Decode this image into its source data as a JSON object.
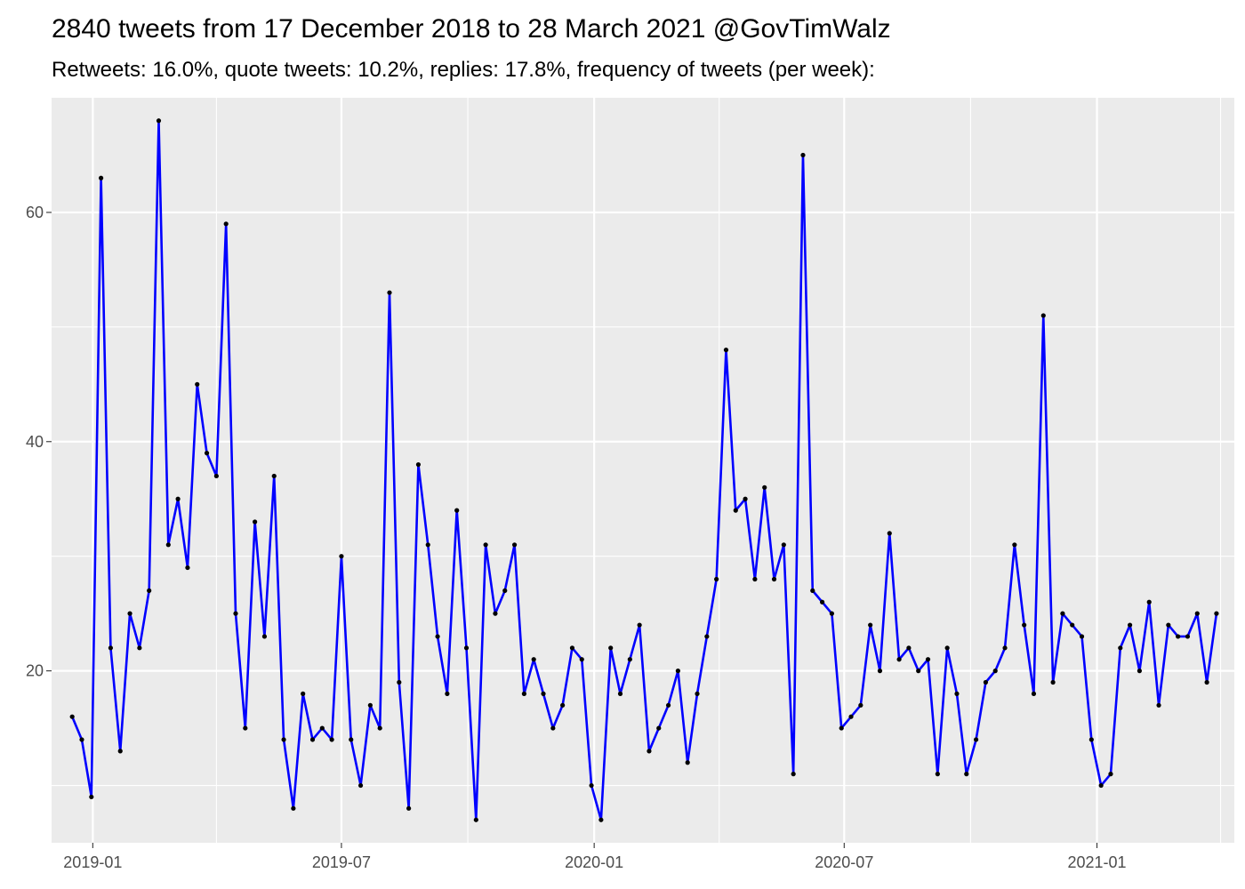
{
  "chart_data": {
    "type": "line",
    "title": "2840 tweets from 17 December 2018 to 28 March 2021 @GovTimWalz",
    "subtitle": "Retweets: 16.0%, quote tweets: 10.2%, replies: 17.8%, frequency of tweets (per week):",
    "xlabel": "",
    "ylabel": "",
    "x_start": "2018-12-17",
    "x_step_days": 7,
    "xlim": [
      "2018-12-02",
      "2021-04-11"
    ],
    "ylim": [
      5,
      70
    ],
    "x_ticks": [
      {
        "date": "2019-01-01",
        "label": "2019-01"
      },
      {
        "date": "2019-07-01",
        "label": "2019-07"
      },
      {
        "date": "2020-01-01",
        "label": "2020-01"
      },
      {
        "date": "2020-07-01",
        "label": "2020-07"
      },
      {
        "date": "2021-01-01",
        "label": "2021-01"
      }
    ],
    "x_minor_ticks": [
      "2018-10-01",
      "2019-04-01",
      "2019-10-01",
      "2020-04-01",
      "2020-10-01",
      "2021-04-01"
    ],
    "y_ticks": [
      20,
      40,
      60
    ],
    "y_minor_ticks": [
      10,
      30,
      50
    ],
    "grid": true,
    "colors": {
      "line": "#0000ff",
      "points": "#000000",
      "panel": "#ebebeb",
      "grid": "#ffffff"
    },
    "series": [
      {
        "values": [
          16,
          14,
          9,
          63,
          22,
          13,
          25,
          22,
          27,
          68,
          31,
          35,
          29,
          45,
          39,
          37,
          59,
          25,
          15,
          33,
          23,
          37,
          14,
          8,
          18,
          14,
          15,
          14,
          30,
          14,
          10,
          17,
          15,
          53,
          19,
          8,
          38,
          31,
          23,
          18,
          34,
          22,
          7,
          31,
          25,
          27,
          31,
          18,
          21,
          18,
          15,
          17,
          22,
          21,
          10,
          7,
          22,
          18,
          21,
          24,
          13,
          15,
          17,
          20,
          12,
          18,
          23,
          28,
          48,
          34,
          35,
          28,
          36,
          28,
          31,
          11,
          65,
          27,
          26,
          25,
          15,
          16,
          17,
          24,
          20,
          32,
          21,
          22,
          20,
          21,
          11,
          22,
          18,
          11,
          14,
          19,
          20,
          22,
          31,
          24,
          18,
          51,
          19,
          25,
          24,
          23,
          14,
          10,
          11,
          22,
          24,
          20,
          26,
          17,
          24,
          23,
          23,
          25,
          19,
          25
        ]
      }
    ]
  }
}
